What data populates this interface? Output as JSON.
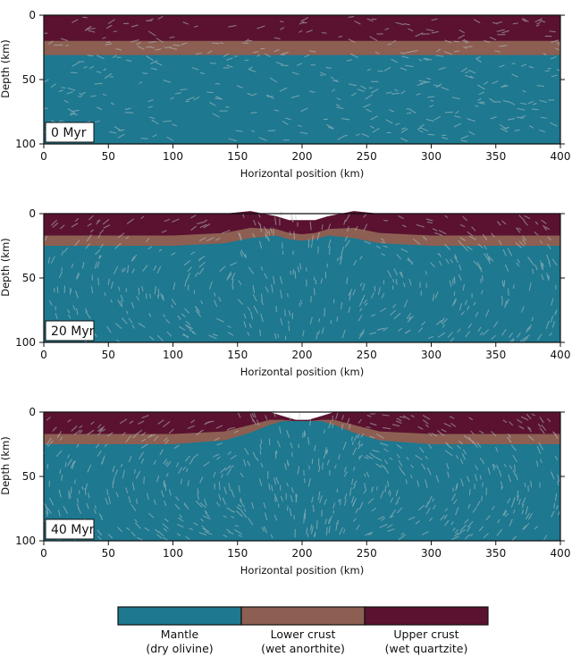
{
  "colors": {
    "mantle": "#1d7890",
    "lower_crust": "#8c5f52",
    "upper_crust": "#5a1230",
    "arrow": "#b9c4c6"
  },
  "legend": [
    {
      "key": "mantle",
      "line1": "Mantle",
      "line2": "(dry olivine)"
    },
    {
      "key": "lower_crust",
      "line1": "Lower crust",
      "line2": "(wet anorthite)"
    },
    {
      "key": "upper_crust",
      "line1": "Upper crust",
      "line2": "(wet quartzite)"
    }
  ],
  "chart_data": [
    {
      "type": "area",
      "time_label": "0 Myr",
      "xlabel": "Horizontal position (km)",
      "ylabel": "Depth (km)",
      "xlim": [
        0,
        400
      ],
      "ylim": [
        0,
        100
      ],
      "xticks": [
        0,
        50,
        100,
        150,
        200,
        250,
        300,
        350,
        400
      ],
      "yticks": [
        0,
        50,
        100
      ],
      "x": [
        0,
        100,
        150,
        170,
        185,
        200,
        215,
        230,
        250,
        300,
        400
      ],
      "series": [
        {
          "key": "upper_crust",
          "top": [
            0,
            0,
            0,
            0,
            0,
            0,
            0,
            0,
            0,
            0,
            0
          ]
        },
        {
          "key": "lower_crust",
          "top": [
            20,
            20,
            20,
            20,
            20,
            20,
            20,
            20,
            20,
            20,
            20
          ]
        },
        {
          "key": "mantle",
          "top": [
            31,
            31,
            31,
            31,
            31,
            31,
            31,
            31,
            31,
            31,
            31
          ]
        }
      ]
    },
    {
      "type": "area",
      "time_label": "20 Myr",
      "xlabel": "Horizontal position (km)",
      "ylabel": "Depth (km)",
      "xlim": [
        0,
        400
      ],
      "ylim": [
        0,
        100
      ],
      "xticks": [
        0,
        50,
        100,
        150,
        200,
        250,
        300,
        350,
        400
      ],
      "yticks": [
        0,
        50,
        100
      ],
      "x": [
        0,
        100,
        140,
        160,
        180,
        190,
        200,
        210,
        220,
        240,
        260,
        300,
        400
      ],
      "series": [
        {
          "key": "upper_crust",
          "top": [
            0,
            0,
            0,
            -2,
            2,
            5,
            5,
            5,
            2,
            -2,
            0,
            0,
            0
          ]
        },
        {
          "key": "lower_crust",
          "top": [
            17,
            17,
            15,
            11,
            12,
            15,
            16,
            15,
            12,
            11,
            15,
            17,
            17
          ]
        },
        {
          "key": "mantle",
          "top": [
            25,
            25,
            23,
            19,
            17,
            20,
            21,
            20,
            17,
            19,
            23,
            25,
            25
          ]
        }
      ]
    },
    {
      "type": "area",
      "time_label": "40 Myr",
      "xlabel": "Horizontal position (km)",
      "ylabel": "Depth (km)",
      "xlim": [
        0,
        400
      ],
      "ylim": [
        0,
        100
      ],
      "xticks": [
        0,
        50,
        100,
        150,
        200,
        250,
        300,
        350,
        400
      ],
      "yticks": [
        0,
        50,
        100
      ],
      "x": [
        0,
        100,
        140,
        160,
        175,
        185,
        195,
        200,
        205,
        215,
        225,
        240,
        260,
        300,
        400
      ],
      "series": [
        {
          "key": "upper_crust",
          "top": [
            0,
            0,
            0,
            0,
            0,
            3,
            6,
            6,
            6,
            3,
            0,
            0,
            0,
            0,
            0
          ]
        },
        {
          "key": "lower_crust",
          "top": [
            17,
            17,
            15,
            10,
            6,
            6,
            7,
            7,
            7,
            6,
            6,
            10,
            15,
            17,
            17
          ]
        },
        {
          "key": "mantle",
          "top": [
            25,
            25,
            22,
            16,
            10,
            7,
            7,
            7,
            7,
            7,
            10,
            16,
            22,
            25,
            25
          ]
        }
      ]
    }
  ]
}
